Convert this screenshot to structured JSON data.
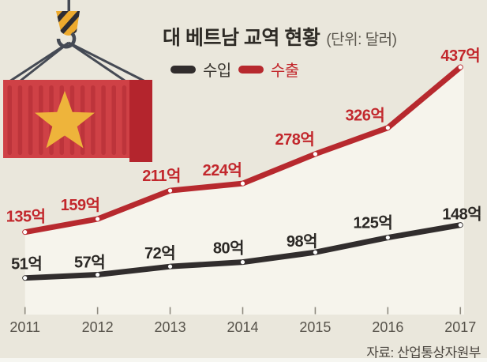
{
  "page": {
    "background_color": "#eae7dc",
    "plot_fill_color": "#f6f4ec"
  },
  "title": {
    "text": "대 베트남 교역 현황",
    "unit": "(단위: 달러)"
  },
  "legend": {
    "items": [
      {
        "label": "수입",
        "color": "#312d2d",
        "text_color": "#39352f"
      },
      {
        "label": "수출",
        "color": "#b7292e",
        "text_color": "#c2272c"
      }
    ]
  },
  "source": "자료: 산업통상자원부",
  "chart_data": {
    "type": "line",
    "title": "대 베트남 교역 현황",
    "unit": "달러",
    "value_suffix": "억",
    "categories": [
      "2011",
      "2012",
      "2013",
      "2014",
      "2015",
      "2016",
      "2017"
    ],
    "series": [
      {
        "name": "수입",
        "color": "#312d2d",
        "label_color": "#2b2825",
        "values": [
          51,
          57,
          72,
          80,
          98,
          125,
          148
        ]
      },
      {
        "name": "수출",
        "color": "#b7292e",
        "label_color": "#c2272c",
        "values": [
          135,
          159,
          211,
          224,
          278,
          326,
          437
        ]
      }
    ],
    "area_fill": {
      "under_series": "수출",
      "color": "#f6f4ec"
    },
    "grid": false,
    "value_axis_labels_visible": false,
    "legend_position": "top-center",
    "tick_color": "#8e8a7f",
    "year_label_color": "#56524a"
  },
  "illustration": {
    "name": "cargo-container-on-crane-hook",
    "flag": "vietnam",
    "colors": {
      "container_body": "#cf4146",
      "container_rib": "#bd343b",
      "container_end_cap": "#b4252d",
      "star_yellow": "#eeb43b",
      "hook_yellow": "#edaa2e",
      "hook_stripe": "#2d2d34",
      "cable": "#454a54"
    }
  }
}
